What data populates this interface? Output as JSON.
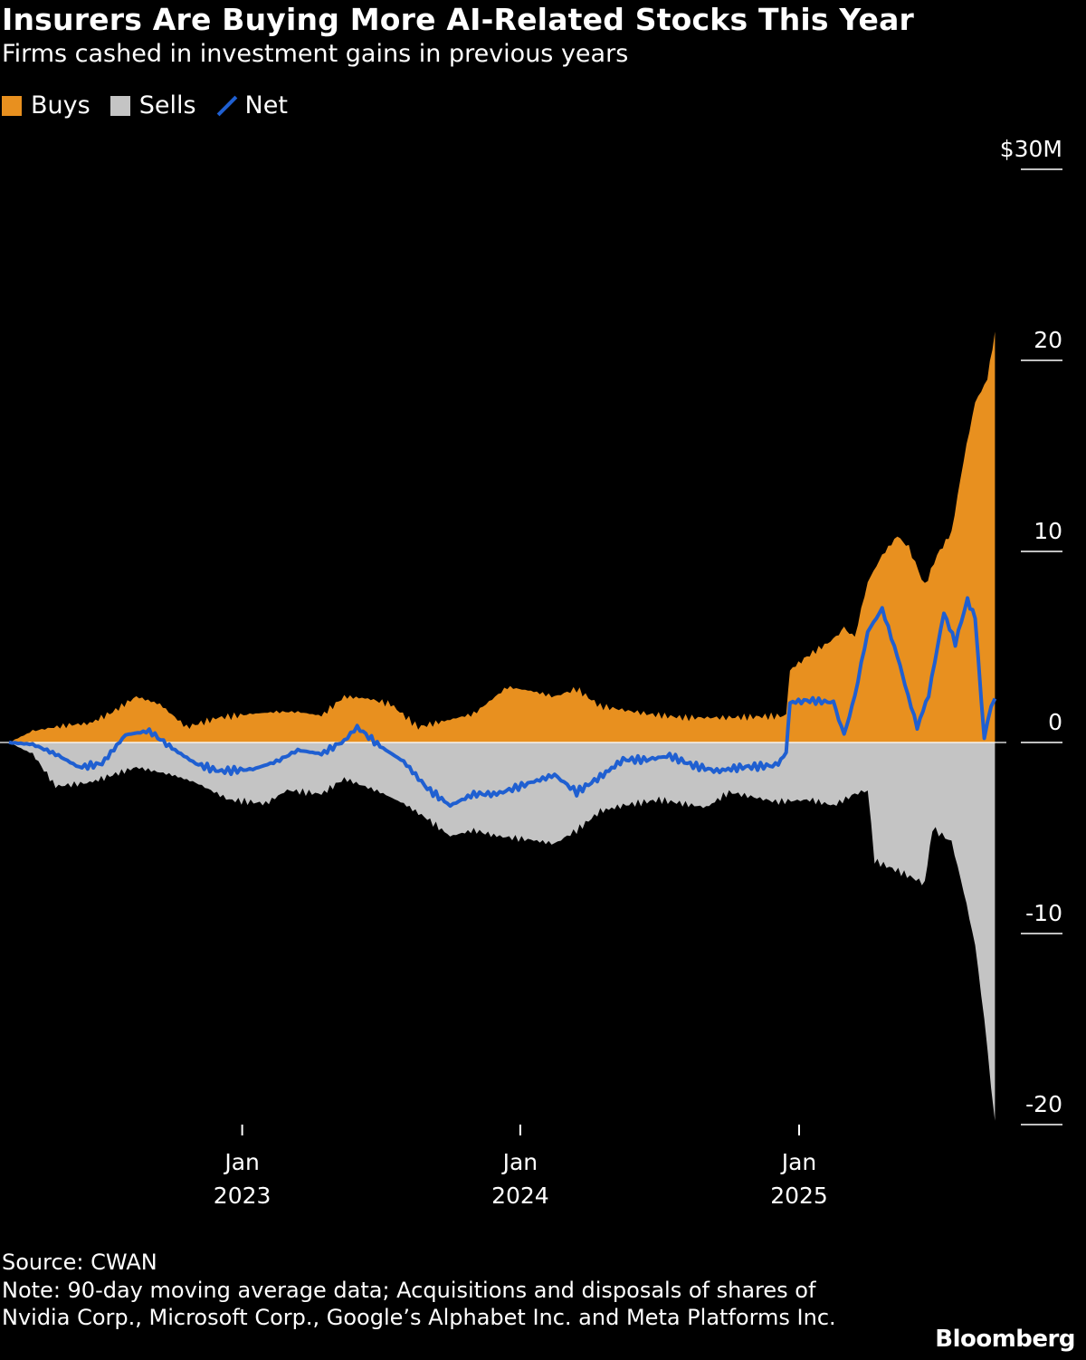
{
  "title": "Insurers Are Buying More AI-Related Stocks This Year",
  "subtitle": "Firms cashed in investment gains in previous years",
  "legend": [
    {
      "label": "Buys",
      "color": "#e8901f",
      "kind": "area"
    },
    {
      "label": "Sells",
      "color": "#c4c4c4",
      "kind": "area"
    },
    {
      "label": "Net",
      "color": "#1f5fd1",
      "kind": "line"
    }
  ],
  "source": "Source: CWAN",
  "note": "Note: 90-day moving average data; Acquisitions and disposals of shares of Nvidia Corp., Microsoft Corp., Google’s Alphabet Inc. and Meta Platforms Inc.",
  "logo": "Bloomberg",
  "chart_data": {
    "type": "area",
    "title": "Insurers Are Buying More AI-Related Stocks This Year",
    "subtitle": "Firms cashed in investment gains in previous years",
    "ylim": [
      -20,
      30
    ],
    "yticks": [
      {
        "value": 30,
        "label": "$30M"
      },
      {
        "value": 20,
        "label": "20"
      },
      {
        "value": 10,
        "label": "10"
      },
      {
        "value": 0,
        "label": "0"
      },
      {
        "value": -10,
        "label": "-10"
      },
      {
        "value": -20,
        "label": "-20"
      }
    ],
    "xlim": [
      "2022-03-01",
      "2025-09-30"
    ],
    "xticks": [
      {
        "date": "2023-01-01",
        "label": [
          "Jan",
          "2023"
        ]
      },
      {
        "date": "2024-01-01",
        "label": [
          "Jan",
          "2024"
        ]
      },
      {
        "date": "2025-01-01",
        "label": [
          "Jan",
          "2025"
        ]
      }
    ],
    "grid": false,
    "legend_position": "top-left",
    "series": [
      {
        "name": "Buys",
        "color": "#e8901f",
        "points": [
          [
            "2022-03-01",
            0
          ],
          [
            "2022-04-01",
            0.6
          ],
          [
            "2022-05-15",
            0.9
          ],
          [
            "2022-06-15",
            1.0
          ],
          [
            "2022-07-15",
            1.6
          ],
          [
            "2022-08-15",
            2.4
          ],
          [
            "2022-09-15",
            2.0
          ],
          [
            "2022-10-20",
            0.8
          ],
          [
            "2022-12-01",
            1.3
          ],
          [
            "2023-01-15",
            1.5
          ],
          [
            "2023-02-15",
            1.6
          ],
          [
            "2023-03-15",
            1.6
          ],
          [
            "2023-04-15",
            1.4
          ],
          [
            "2023-05-15",
            2.4
          ],
          [
            "2023-06-15",
            2.3
          ],
          [
            "2023-07-15",
            2.0
          ],
          [
            "2023-08-20",
            0.8
          ],
          [
            "2023-10-01",
            1.2
          ],
          [
            "2023-11-01",
            1.5
          ],
          [
            "2023-12-15",
            2.9
          ],
          [
            "2024-01-15",
            2.7
          ],
          [
            "2024-02-15",
            2.4
          ],
          [
            "2024-03-15",
            2.8
          ],
          [
            "2024-04-15",
            1.9
          ],
          [
            "2024-06-15",
            1.5
          ],
          [
            "2024-08-01",
            1.3
          ],
          [
            "2024-10-01",
            1.3
          ],
          [
            "2024-12-15",
            1.4
          ],
          [
            "2024-12-20",
            3.8
          ],
          [
            "2025-01-15",
            4.6
          ],
          [
            "2025-02-15",
            5.4
          ],
          [
            "2025-03-01",
            6.0
          ],
          [
            "2025-03-15",
            5.5
          ],
          [
            "2025-04-01",
            8.4
          ],
          [
            "2025-04-20",
            9.8
          ],
          [
            "2025-05-10",
            10.8
          ],
          [
            "2025-05-25",
            10.2
          ],
          [
            "2025-06-15",
            8.2
          ],
          [
            "2025-07-01",
            9.8
          ],
          [
            "2025-07-20",
            11.0
          ],
          [
            "2025-08-05",
            14.8
          ],
          [
            "2025-08-20",
            17.8
          ],
          [
            "2025-09-05",
            19.0
          ],
          [
            "2025-09-15",
            21.5
          ]
        ]
      },
      {
        "name": "Sells",
        "color": "#c4c4c4",
        "points": [
          [
            "2022-03-01",
            0
          ],
          [
            "2022-04-01",
            -0.6
          ],
          [
            "2022-05-01",
            -2.3
          ],
          [
            "2022-06-15",
            -2.1
          ],
          [
            "2022-07-15",
            -1.7
          ],
          [
            "2022-08-15",
            -1.3
          ],
          [
            "2022-10-01",
            -1.7
          ],
          [
            "2022-11-01",
            -2.1
          ],
          [
            "2022-12-15",
            -3.0
          ],
          [
            "2023-02-01",
            -3.2
          ],
          [
            "2023-03-01",
            -2.5
          ],
          [
            "2023-04-15",
            -2.7
          ],
          [
            "2023-05-15",
            -1.9
          ],
          [
            "2023-07-01",
            -2.6
          ],
          [
            "2023-08-01",
            -3.2
          ],
          [
            "2023-09-01",
            -4.0
          ],
          [
            "2023-10-01",
            -4.9
          ],
          [
            "2023-11-01",
            -4.6
          ],
          [
            "2023-12-01",
            -4.9
          ],
          [
            "2024-01-15",
            -5.1
          ],
          [
            "2024-02-15",
            -5.3
          ],
          [
            "2024-03-15",
            -4.6
          ],
          [
            "2024-04-15",
            -3.6
          ],
          [
            "2024-05-15",
            -3.3
          ],
          [
            "2024-07-01",
            -3.0
          ],
          [
            "2024-09-01",
            -3.4
          ],
          [
            "2024-10-01",
            -2.6
          ],
          [
            "2024-12-01",
            -3.1
          ],
          [
            "2025-01-15",
            -3.0
          ],
          [
            "2025-02-15",
            -3.3
          ],
          [
            "2025-03-15",
            -2.7
          ],
          [
            "2025-04-01",
            -2.5
          ],
          [
            "2025-04-10",
            -6.2
          ],
          [
            "2025-05-15",
            -6.8
          ],
          [
            "2025-06-15",
            -7.4
          ],
          [
            "2025-06-25",
            -4.5
          ],
          [
            "2025-07-20",
            -5.2
          ],
          [
            "2025-08-05",
            -7.8
          ],
          [
            "2025-08-20",
            -10.6
          ],
          [
            "2025-09-01",
            -14.5
          ],
          [
            "2025-09-10",
            -18.0
          ],
          [
            "2025-09-15",
            -19.8
          ]
        ]
      },
      {
        "name": "Net",
        "color": "#1f5fd1",
        "points": [
          [
            "2022-03-01",
            0
          ],
          [
            "2022-04-01",
            -0.1
          ],
          [
            "2022-05-01",
            -0.6
          ],
          [
            "2022-06-01",
            -1.3
          ],
          [
            "2022-07-01",
            -1.1
          ],
          [
            "2022-08-01",
            0.4
          ],
          [
            "2022-09-01",
            0.6
          ],
          [
            "2022-10-01",
            -0.3
          ],
          [
            "2022-11-01",
            -1.1
          ],
          [
            "2022-12-01",
            -1.5
          ],
          [
            "2023-01-15",
            -1.4
          ],
          [
            "2023-02-15",
            -1.0
          ],
          [
            "2023-03-15",
            -0.4
          ],
          [
            "2023-04-15",
            -0.6
          ],
          [
            "2023-05-15",
            0.1
          ],
          [
            "2023-06-01",
            0.8
          ],
          [
            "2023-07-01",
            -0.2
          ],
          [
            "2023-08-01",
            -1.0
          ],
          [
            "2023-09-01",
            -2.4
          ],
          [
            "2023-10-01",
            -3.3
          ],
          [
            "2023-11-01",
            -2.7
          ],
          [
            "2023-12-01",
            -2.7
          ],
          [
            "2024-01-15",
            -2.1
          ],
          [
            "2024-02-15",
            -1.7
          ],
          [
            "2024-03-15",
            -2.6
          ],
          [
            "2024-04-15",
            -1.8
          ],
          [
            "2024-05-15",
            -0.9
          ],
          [
            "2024-06-15",
            -0.9
          ],
          [
            "2024-07-15",
            -0.7
          ],
          [
            "2024-08-15",
            -1.2
          ],
          [
            "2024-09-15",
            -1.5
          ],
          [
            "2024-10-15",
            -1.3
          ],
          [
            "2024-12-01",
            -1.2
          ],
          [
            "2024-12-15",
            -0.6
          ],
          [
            "2024-12-20",
            2.1
          ],
          [
            "2025-01-15",
            2.2
          ],
          [
            "2025-02-15",
            2.1
          ],
          [
            "2025-03-01",
            0.4
          ],
          [
            "2025-03-15",
            2.4
          ],
          [
            "2025-04-01",
            5.8
          ],
          [
            "2025-04-20",
            7.0
          ],
          [
            "2025-05-10",
            4.5
          ],
          [
            "2025-05-20",
            3.0
          ],
          [
            "2025-06-05",
            0.8
          ],
          [
            "2025-06-20",
            2.5
          ],
          [
            "2025-07-10",
            6.8
          ],
          [
            "2025-07-25",
            5.2
          ],
          [
            "2025-08-10",
            7.5
          ],
          [
            "2025-08-20",
            6.5
          ],
          [
            "2025-09-01",
            0.2
          ],
          [
            "2025-09-10",
            2.0
          ],
          [
            "2025-09-15",
            2.3
          ]
        ]
      }
    ]
  }
}
